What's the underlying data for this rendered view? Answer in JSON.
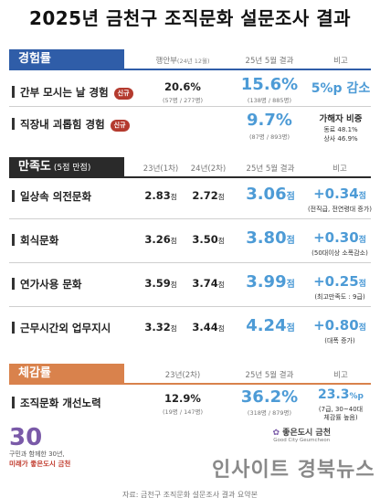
{
  "title": "2025년 금천구 조직문화 설문조사 결과",
  "colors": {
    "experience": "#2f5da8",
    "satisfaction": "#2a2a2a",
    "perception": "#d9824c",
    "highlight": "#4d9bd6",
    "badge": "#b43a2e"
  },
  "experience": {
    "label": "경험률",
    "col1": "행안부",
    "col1_sub": "(24년 12월)",
    "col2": "25년 5월 결과",
    "col3": "비고",
    "rows": [
      {
        "label": "간부 모시는 날 경험",
        "badge": "신규",
        "v1": "20.6%",
        "v1_sub": "(57명 / 277명)",
        "v2": "15.6%",
        "v2_sub": "(138명 / 885명)",
        "note": "5%p 감소",
        "note_detail": ""
      },
      {
        "label": "직장내 괴롭힘 경험",
        "badge": "신규",
        "v1": "",
        "v1_sub": "",
        "v2": "9.7%",
        "v2_sub": "(87명 / 893명)",
        "note": "가해자 비중",
        "note_detail": "동료 48.1%",
        "note_detail2": "상사 46.9%"
      }
    ]
  },
  "satisfaction": {
    "label": "만족도",
    "label_sub": "(5점 만점)",
    "col1": "23년(1차)",
    "col2": "24년(2차)",
    "col3": "25년 5월 결과",
    "col4": "비고",
    "unit": "점",
    "rows": [
      {
        "label": "일상속 의전문화",
        "v1": "2.83",
        "v2": "2.72",
        "v3": "3.06",
        "delta": "+0.34",
        "note": "(전직급, 전연령대 증가)"
      },
      {
        "label": "회식문화",
        "v1": "3.26",
        "v2": "3.50",
        "v3": "3.80",
        "delta": "+0.30",
        "note": "(50대이상 소폭감소)"
      },
      {
        "label": "연가사용 문화",
        "v1": "3.59",
        "v2": "3.74",
        "v3": "3.99",
        "delta": "+0.25",
        "note": "(최고만족도 : 9급)"
      },
      {
        "label": "근무시간외 업무지시",
        "v1": "3.32",
        "v2": "3.44",
        "v3": "4.24",
        "delta": "+0.80",
        "note": "(대폭 증가)"
      }
    ]
  },
  "perception": {
    "label": "체감률",
    "col1": "23년(2차)",
    "col2": "25년 5월 결과",
    "col3": "비고",
    "rows": [
      {
        "label": "조직문화 개선노력",
        "v1": "12.9%",
        "v1_sub": "(19명 / 147명)",
        "v2": "36.2%",
        "v2_sub": "(318명 / 879명)",
        "delta": "23.3",
        "delta_unit": "%p",
        "note": "(7급, 30~40대",
        "note2": "체감률 높음)"
      }
    ]
  },
  "footer": {
    "logo_num": "30",
    "logo_line1": "구민과 함께한 30년,",
    "logo_line2": "미래가 좋은도시 금천",
    "right_logo": "좋은도시 금천",
    "right_sub": "Good City Geumcheon",
    "watermark": "인사이트 경북뉴스",
    "source": "자료: 금천구 조직문화 설문조사 결과 요약본"
  }
}
